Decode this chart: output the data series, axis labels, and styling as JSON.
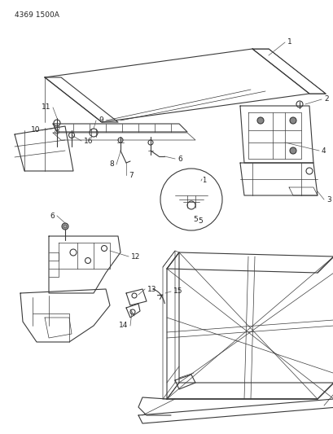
{
  "title": "4369 1500A",
  "bg": "#ffffff",
  "lc": "#3a3a3a",
  "tc": "#222222",
  "fig_w": 4.1,
  "fig_h": 5.33,
  "dpi": 100,
  "label_fs": 6.5,
  "header_fs": 6.5
}
